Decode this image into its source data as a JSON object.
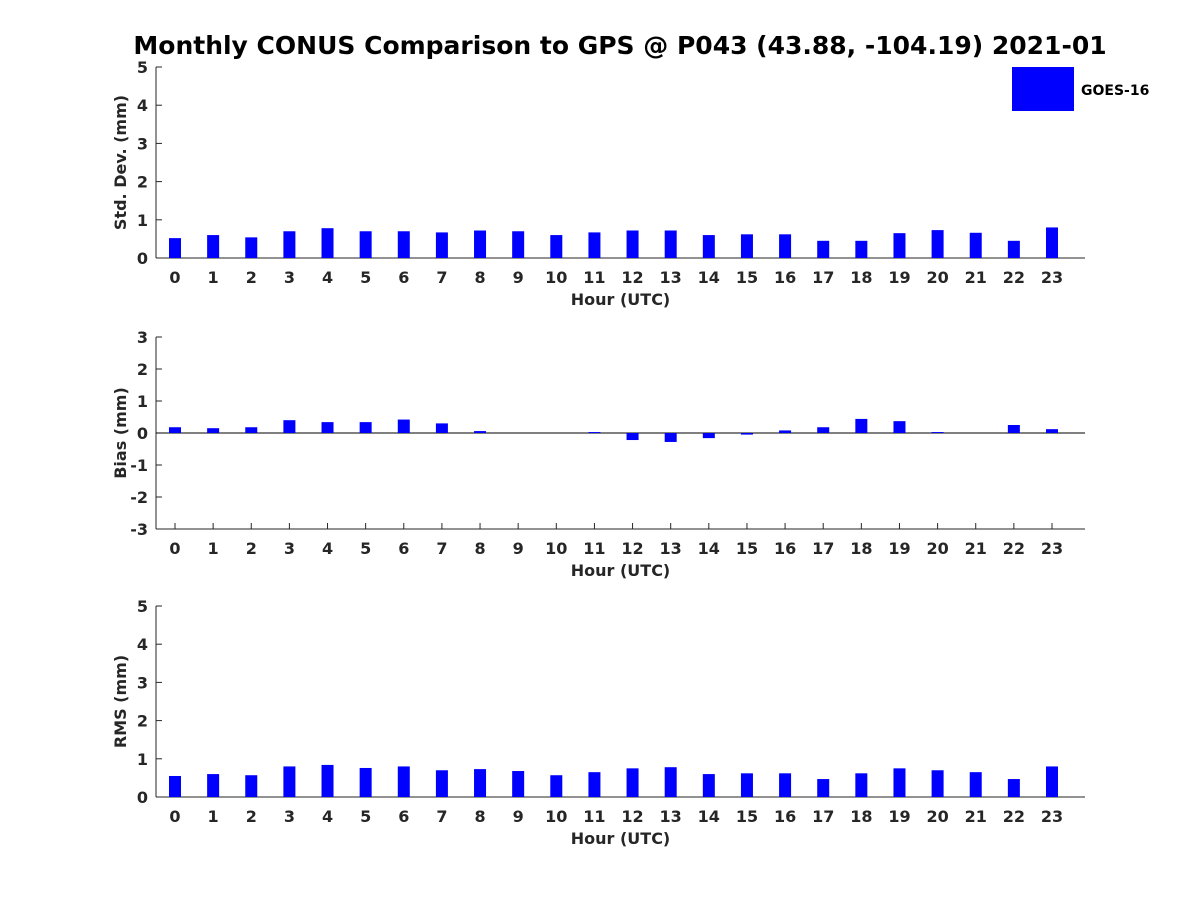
{
  "figure": {
    "title": "Monthly CONUS Comparison to GPS @ P043 (43.88, -104.19) 2021-01"
  },
  "legend": {
    "label": "GOES-16",
    "color": "#0000ff",
    "placement": "top-right"
  },
  "chart_data": [
    {
      "type": "bar",
      "categories": [
        "0",
        "1",
        "2",
        "3",
        "4",
        "5",
        "6",
        "7",
        "8",
        "9",
        "10",
        "11",
        "12",
        "13",
        "14",
        "15",
        "16",
        "17",
        "18",
        "19",
        "20",
        "21",
        "22",
        "23"
      ],
      "series": [
        {
          "name": "GOES-16",
          "values": [
            0.52,
            0.6,
            0.54,
            0.7,
            0.78,
            0.7,
            0.7,
            0.67,
            0.72,
            0.7,
            0.6,
            0.67,
            0.72,
            0.72,
            0.6,
            0.62,
            0.62,
            0.45,
            0.45,
            0.65,
            0.73,
            0.66,
            0.45,
            0.8
          ]
        }
      ],
      "xlabel": "Hour (UTC)",
      "ylabel": "Std. Dev. (mm)",
      "ylim": [
        0,
        5
      ],
      "yticks": [
        0,
        1,
        2,
        3,
        4,
        5
      ],
      "grid": false
    },
    {
      "type": "bar",
      "categories": [
        "0",
        "1",
        "2",
        "3",
        "4",
        "5",
        "6",
        "7",
        "8",
        "9",
        "10",
        "11",
        "12",
        "13",
        "14",
        "15",
        "16",
        "17",
        "18",
        "19",
        "20",
        "21",
        "22",
        "23"
      ],
      "series": [
        {
          "name": "GOES-16",
          "values": [
            0.18,
            0.15,
            0.18,
            0.4,
            0.34,
            0.34,
            0.42,
            0.3,
            0.06,
            0.0,
            0.0,
            0.03,
            -0.22,
            -0.28,
            -0.16,
            -0.05,
            0.08,
            0.18,
            0.44,
            0.37,
            0.03,
            0.0,
            0.25,
            0.12
          ]
        }
      ],
      "xlabel": "Hour (UTC)",
      "ylabel": "Bias (mm)",
      "ylim": [
        -3,
        3
      ],
      "yticks": [
        -3,
        -2,
        -1,
        0,
        1,
        2,
        3
      ],
      "zero_line": true,
      "grid": false
    },
    {
      "type": "bar",
      "categories": [
        "0",
        "1",
        "2",
        "3",
        "4",
        "5",
        "6",
        "7",
        "8",
        "9",
        "10",
        "11",
        "12",
        "13",
        "14",
        "15",
        "16",
        "17",
        "18",
        "19",
        "20",
        "21",
        "22",
        "23"
      ],
      "series": [
        {
          "name": "GOES-16",
          "values": [
            0.55,
            0.6,
            0.57,
            0.8,
            0.84,
            0.76,
            0.8,
            0.7,
            0.73,
            0.68,
            0.57,
            0.65,
            0.75,
            0.78,
            0.6,
            0.62,
            0.62,
            0.47,
            0.62,
            0.75,
            0.7,
            0.65,
            0.47,
            0.8
          ]
        }
      ],
      "xlabel": "Hour (UTC)",
      "ylabel": "RMS (mm)",
      "ylim": [
        0,
        5
      ],
      "yticks": [
        0,
        1,
        2,
        3,
        4,
        5
      ],
      "grid": false
    }
  ]
}
